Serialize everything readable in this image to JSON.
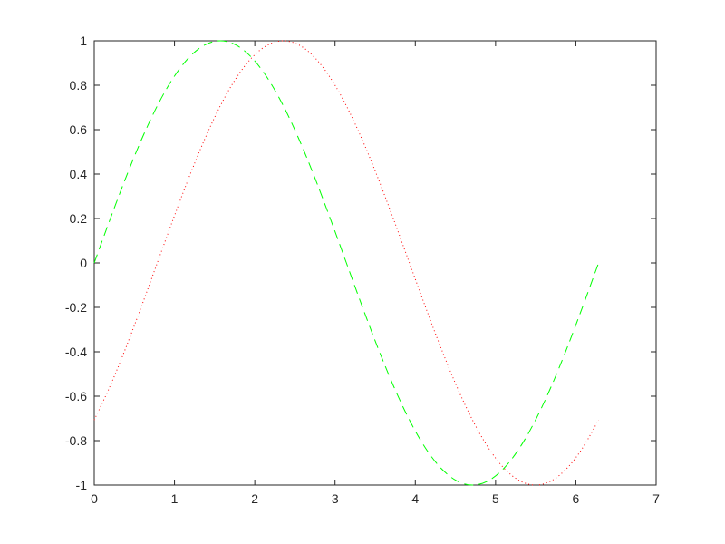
{
  "chart_data": {
    "type": "line",
    "title": "",
    "xlabel": "",
    "ylabel": "",
    "xlim": [
      0,
      7
    ],
    "ylim": [
      -1,
      1
    ],
    "xticks": [
      "0",
      "1",
      "2",
      "3",
      "4",
      "5",
      "6",
      "7"
    ],
    "yticks": [
      "-1",
      "-0.8",
      "-0.6",
      "-0.4",
      "-0.2",
      "0",
      "0.2",
      "0.4",
      "0.6",
      "0.8",
      "1"
    ],
    "grid": false,
    "box": true,
    "x": [
      0,
      0.1963,
      0.3927,
      0.589,
      0.7854,
      0.9817,
      1.1781,
      1.3744,
      1.5708,
      1.7671,
      1.9635,
      2.1598,
      2.3562,
      2.5525,
      2.7489,
      2.9452,
      3.1416,
      3.3379,
      3.5343,
      3.7306,
      3.927,
      4.1233,
      4.3197,
      4.516,
      4.7124,
      4.9087,
      5.1051,
      5.3014,
      5.4978,
      5.6941,
      5.8905,
      6.0868,
      6.2832
    ],
    "series": [
      {
        "color": "#00ff00",
        "style": "dashed",
        "values": [
          0,
          0.1951,
          0.3827,
          0.5556,
          0.7071,
          0.8315,
          0.9239,
          0.9808,
          1,
          0.9808,
          0.9239,
          0.8315,
          0.7071,
          0.5556,
          0.3827,
          0.1951,
          0,
          -0.1951,
          -0.3827,
          -0.5556,
          -0.7071,
          -0.8315,
          -0.9239,
          -0.9808,
          -1,
          -0.9808,
          -0.9239,
          -0.8315,
          -0.7071,
          -0.5556,
          -0.3827,
          -0.1951,
          0
        ]
      },
      {
        "color": "#ff0000",
        "style": "dotted",
        "values": [
          -0.7071,
          -0.5556,
          -0.3827,
          -0.1951,
          0,
          0.1951,
          0.3827,
          0.5556,
          0.7071,
          0.8315,
          0.9239,
          0.9808,
          1,
          0.9808,
          0.9239,
          0.8315,
          0.7071,
          0.5556,
          0.3827,
          0.1951,
          0,
          -0.1951,
          -0.3827,
          -0.5556,
          -0.7071,
          -0.8315,
          -0.9239,
          -0.9808,
          -1,
          -0.9808,
          -0.9239,
          -0.8315,
          -0.7071
        ]
      }
    ]
  }
}
